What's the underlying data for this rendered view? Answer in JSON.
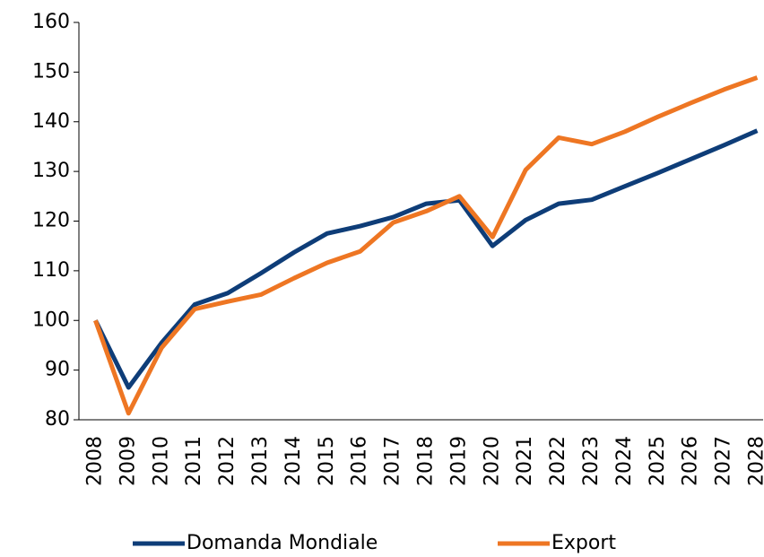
{
  "chart_data": {
    "type": "line",
    "categories": [
      "2008",
      "2009",
      "2010",
      "2011",
      "2012",
      "2013",
      "2014",
      "2015",
      "2016",
      "2017",
      "2018",
      "2019",
      "2020",
      "2021",
      "2022",
      "2023",
      "2024",
      "2025",
      "2026",
      "2027",
      "2028"
    ],
    "series": [
      {
        "name": "Domanda Mondiale",
        "color": "#0e3d78",
        "values": [
          100,
          86.5,
          95.5,
          103.2,
          105.5,
          109.5,
          113.7,
          117.5,
          119,
          120.8,
          123.5,
          124.2,
          115,
          120.2,
          123.5,
          124.3,
          127,
          129.7,
          132.5,
          135.3,
          138.2
        ]
      },
      {
        "name": "Export",
        "color": "#ee7623",
        "values": [
          100,
          81.3,
          94.5,
          102.3,
          103.8,
          105.2,
          108.5,
          111.6,
          113.9,
          119.7,
          122,
          125,
          116.8,
          130.3,
          136.8,
          135.5,
          138,
          141,
          143.8,
          146.5,
          148.9
        ]
      }
    ],
    "ylim": [
      80,
      160
    ],
    "yticks": [
      80,
      90,
      100,
      110,
      120,
      130,
      140,
      150,
      160
    ],
    "legend": "bottom"
  }
}
